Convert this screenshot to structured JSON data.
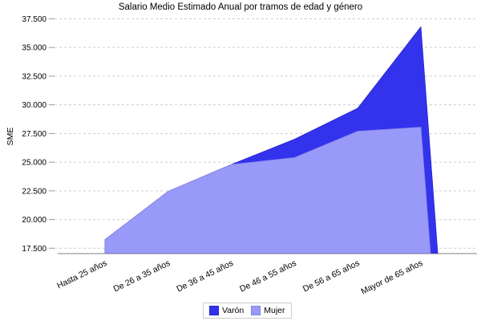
{
  "chart_data": {
    "type": "area",
    "title": "Salario Medio Estimado Anual por tramos de edad y género",
    "ylabel": "SME",
    "xlabel": "",
    "categories": [
      "Hasta 25 años",
      "De 26 a 35 años",
      "De 36 a 45 años",
      "De 46 a 55 años",
      "De 56 a 65 años",
      "Mayor de 65 años"
    ],
    "series": [
      {
        "name": "Varón",
        "color": "#3333ee",
        "edge_color": "#2424c8",
        "values": [
          null,
          null,
          24800,
          27000,
          29700,
          36800
        ]
      },
      {
        "name": "Mujer",
        "color": "#9999fa",
        "edge_color": "#8585e0",
        "values": [
          18250,
          22450,
          24800,
          25400,
          27700,
          28050
        ]
      }
    ],
    "ylim": [
      17500,
      37500
    ],
    "ytick_step": 2500,
    "ytick_labels": [
      "17.500",
      "20.000",
      "22.500",
      "25.000",
      "27.500",
      "30.000",
      "32.500",
      "35.000",
      "37.500"
    ],
    "grid": "horizontal-dashed",
    "grid_color": "#cccccc",
    "axis_line_color": "#999999",
    "legend_position": "bottom-center"
  }
}
